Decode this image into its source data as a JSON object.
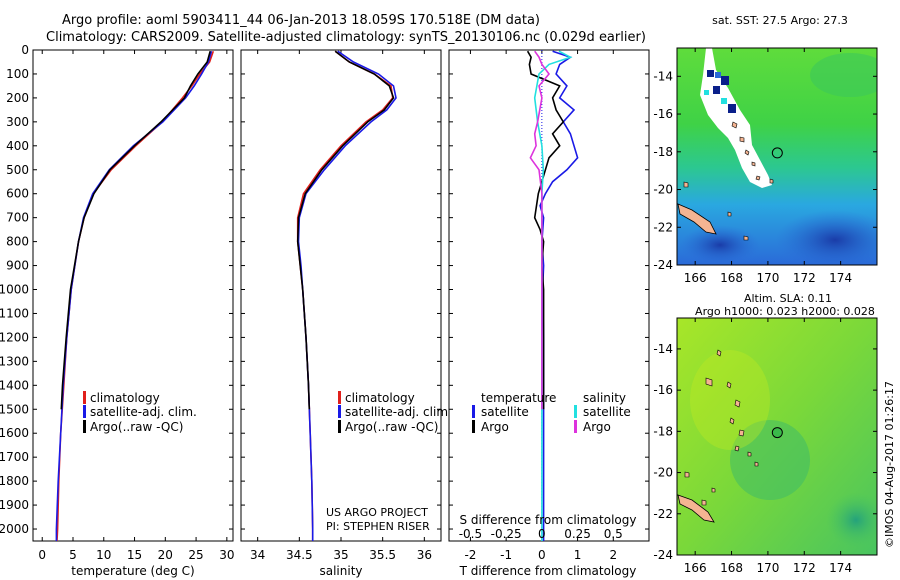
{
  "header": {
    "title_line1": "Argo profile: aoml 5903411_44 06-Jan-2013 18.059S 170.518E (DM data)",
    "title_line2": "Climatology: CARS2009. Satellite-adjusted climatology: synTS_20130106.nc (0.029d earlier)"
  },
  "colors": {
    "climatology": "#e0201c",
    "satellite": "#1a1ae6",
    "argo": "#000000",
    "sat_salinity": "#22e0e0",
    "argo_salinity": "#dd33dd"
  },
  "chart_data": [
    {
      "type": "line",
      "id": "temperature",
      "xlabel": "temperature (deg C)",
      "ylabel": "",
      "xlim": [
        -1.5,
        31
      ],
      "ylim": [
        2050,
        0
      ],
      "xticks": [
        0,
        5,
        10,
        15,
        20,
        25,
        30
      ],
      "yticks": [
        0,
        100,
        200,
        300,
        400,
        500,
        600,
        700,
        800,
        900,
        1000,
        1100,
        1200,
        1300,
        1400,
        1500,
        1600,
        1700,
        1800,
        1900,
        2000
      ],
      "legend": [
        "climatology",
        "satellite-adj. clim.",
        "Argo(..raw -QC)"
      ],
      "series": [
        {
          "name": "climatology",
          "depth": [
            5,
            50,
            100,
            150,
            200,
            300,
            400,
            500,
            600,
            700,
            800,
            1000,
            1200,
            1400,
            1600,
            1800,
            2000,
            2050
          ],
          "values": [
            27.8,
            27.2,
            25.6,
            24.3,
            22.8,
            19.5,
            15.2,
            11.2,
            8.3,
            6.8,
            5.9,
            4.7,
            4.0,
            3.5,
            3.0,
            2.7,
            2.5,
            2.4
          ]
        },
        {
          "name": "satellite-adj. clim.",
          "depth": [
            5,
            50,
            100,
            150,
            200,
            300,
            400,
            500,
            600,
            700,
            800,
            1000,
            1200,
            1400,
            1600,
            1800,
            2000,
            2050
          ],
          "values": [
            27.5,
            27.0,
            25.9,
            24.7,
            23.3,
            19.6,
            14.8,
            10.9,
            8.2,
            6.7,
            5.9,
            4.7,
            4.0,
            3.4,
            3.0,
            2.6,
            2.3,
            2.3
          ]
        },
        {
          "name": "Argo(..raw -QC)",
          "depth": [
            5,
            50,
            100,
            150,
            200,
            300,
            400,
            500,
            600,
            700,
            800,
            1000,
            1200,
            1400,
            1500
          ],
          "values": [
            27.3,
            26.8,
            25.3,
            24.1,
            23.1,
            19.3,
            15.0,
            11.0,
            8.4,
            6.8,
            5.9,
            4.6,
            3.9,
            3.3,
            3.1
          ]
        }
      ]
    },
    {
      "type": "line",
      "id": "salinity",
      "xlabel": "salinity",
      "ylabel": "",
      "xlim": [
        33.8,
        36.2
      ],
      "ylim": [
        2050,
        0
      ],
      "xticks": [
        34,
        34.5,
        35,
        35.5,
        36
      ],
      "legend": [
        "climatology",
        "satellite-adj. clim.",
        "Argo(..raw -QC)"
      ],
      "annotation": [
        "US ARGO PROJECT",
        "PI: STEPHEN RISER"
      ],
      "series": [
        {
          "name": "climatology",
          "depth": [
            5,
            50,
            100,
            150,
            200,
            250,
            300,
            400,
            500,
            600,
            700,
            800,
            900,
            1000,
            1200,
            1400,
            1600,
            1800,
            2000,
            2050
          ],
          "values": [
            34.93,
            35.1,
            35.4,
            35.6,
            35.62,
            35.5,
            35.3,
            35.0,
            34.75,
            34.55,
            34.48,
            34.48,
            34.51,
            34.54,
            34.58,
            34.61,
            34.63,
            34.65,
            34.66,
            34.66
          ]
        },
        {
          "name": "satellite-adj. clim.",
          "depth": [
            5,
            50,
            100,
            150,
            200,
            250,
            300,
            400,
            500,
            600,
            700,
            800,
            900,
            1000,
            1200,
            1400,
            1600,
            1800,
            2000,
            2050
          ],
          "values": [
            34.96,
            35.15,
            35.45,
            35.63,
            35.66,
            35.55,
            35.36,
            35.05,
            34.8,
            34.58,
            34.5,
            34.49,
            34.52,
            34.54,
            34.58,
            34.61,
            34.63,
            34.65,
            34.66,
            34.66
          ]
        },
        {
          "name": "Argo(..raw -QC)",
          "depth": [
            5,
            50,
            100,
            150,
            200,
            250,
            300,
            400,
            500,
            600,
            700,
            800,
            900,
            1000,
            1200,
            1400,
            1500
          ],
          "values": [
            34.93,
            35.1,
            35.4,
            35.58,
            35.63,
            35.52,
            35.32,
            35.02,
            34.77,
            34.57,
            34.49,
            34.48,
            34.51,
            34.54,
            34.58,
            34.61,
            34.62
          ]
        }
      ]
    },
    {
      "type": "line",
      "id": "differences",
      "xlabel_s": "S difference from climatology",
      "xlabel_t": "T difference from climatology",
      "xlim": [
        -2.6,
        3.0
      ],
      "ylim": [
        2050,
        0
      ],
      "xticks_t": [
        -2,
        -1,
        0,
        1,
        2
      ],
      "xticks_s": [
        -0.5,
        -0.25,
        0,
        0.25,
        0.5
      ],
      "legend_headings": [
        "temperature",
        "salinity"
      ],
      "legend_items": [
        "satellite",
        "Argo",
        "satellite",
        "Argo"
      ],
      "series": [
        {
          "name": "T satellite",
          "depth": [
            5,
            30,
            60,
            100,
            150,
            200,
            250,
            300,
            350,
            400,
            450,
            500,
            550,
            600,
            650,
            700,
            800,
            900,
            1000,
            1200,
            1400,
            1600,
            1800,
            2000,
            2050
          ],
          "values": [
            0.3,
            0.8,
            0.5,
            0.4,
            0.7,
            0.5,
            0.9,
            0.6,
            0.8,
            0.9,
            1.0,
            0.7,
            0.3,
            0.1,
            -0.05,
            0.05,
            0.0,
            0.05,
            0.02,
            0.05,
            0.05,
            0.05,
            0.05,
            0.05,
            0.05
          ]
        },
        {
          "name": "T Argo",
          "depth": [
            5,
            30,
            60,
            100,
            150,
            200,
            250,
            300,
            350,
            400,
            450,
            500,
            600,
            700,
            750,
            800,
            900,
            1000,
            1100,
            1200,
            1300,
            1400,
            1500
          ],
          "values": [
            -0.4,
            -0.3,
            -0.35,
            -0.3,
            0.5,
            0.3,
            0.4,
            0.6,
            0.3,
            0.5,
            0.2,
            0.1,
            -0.1,
            -0.2,
            -0.05,
            0.05,
            0.0,
            0.05,
            0.05,
            0.05,
            0.05,
            0.05,
            0.05
          ]
        },
        {
          "name": "S satellite",
          "depth": [
            5,
            30,
            60,
            100,
            200,
            300,
            400,
            500,
            600,
            700,
            800,
            1000,
            1200,
            1400,
            1600,
            1800,
            2000,
            2050
          ],
          "values": [
            0.12,
            0.2,
            0.05,
            -0.02,
            -0.05,
            -0.03,
            0.0,
            0.01,
            0.0,
            0.0,
            0.0,
            0.0,
            0.0,
            0.0,
            0.0,
            0.0,
            0.0,
            0.0
          ]
        },
        {
          "name": "S Argo",
          "depth": [
            5,
            30,
            60,
            100,
            150,
            200,
            300,
            350,
            400,
            450,
            500,
            600,
            700,
            800,
            1000,
            1200,
            1400,
            1500
          ],
          "values": [
            -0.05,
            -0.02,
            0.0,
            0.05,
            -0.02,
            0.0,
            -0.03,
            -0.05,
            -0.04,
            -0.08,
            -0.02,
            0.0,
            0.0,
            0.0,
            0.0,
            0.0,
            0.0,
            0.0
          ]
        }
      ]
    },
    {
      "type": "heatmap",
      "id": "sst_map",
      "title": "sat. SST: 27.5 Argo: 27.3",
      "xticks": [
        166,
        168,
        170,
        172,
        174
      ],
      "yticks": [
        -14,
        -16,
        -18,
        -20,
        -22,
        -24
      ],
      "xlim": [
        165,
        176
      ],
      "ylim": [
        -24,
        -12.5
      ],
      "marker": {
        "lon": 170.518,
        "lat": -18.059
      }
    },
    {
      "type": "heatmap",
      "id": "sla_map",
      "title_line1": "Altim. SLA: 0.11",
      "title_line2": "Argo h1000: 0.023 h2000: 0.028",
      "xticks": [
        166,
        168,
        170,
        172,
        174
      ],
      "yticks": [
        -14,
        -16,
        -18,
        -20,
        -22,
        -24
      ],
      "xlim": [
        165,
        176
      ],
      "ylim": [
        -24,
        -12.5
      ],
      "marker": {
        "lon": 170.518,
        "lat": -18.059
      }
    }
  ],
  "footer": {
    "stamp": "©IMOS 04-Aug-2017 01:26:17"
  }
}
